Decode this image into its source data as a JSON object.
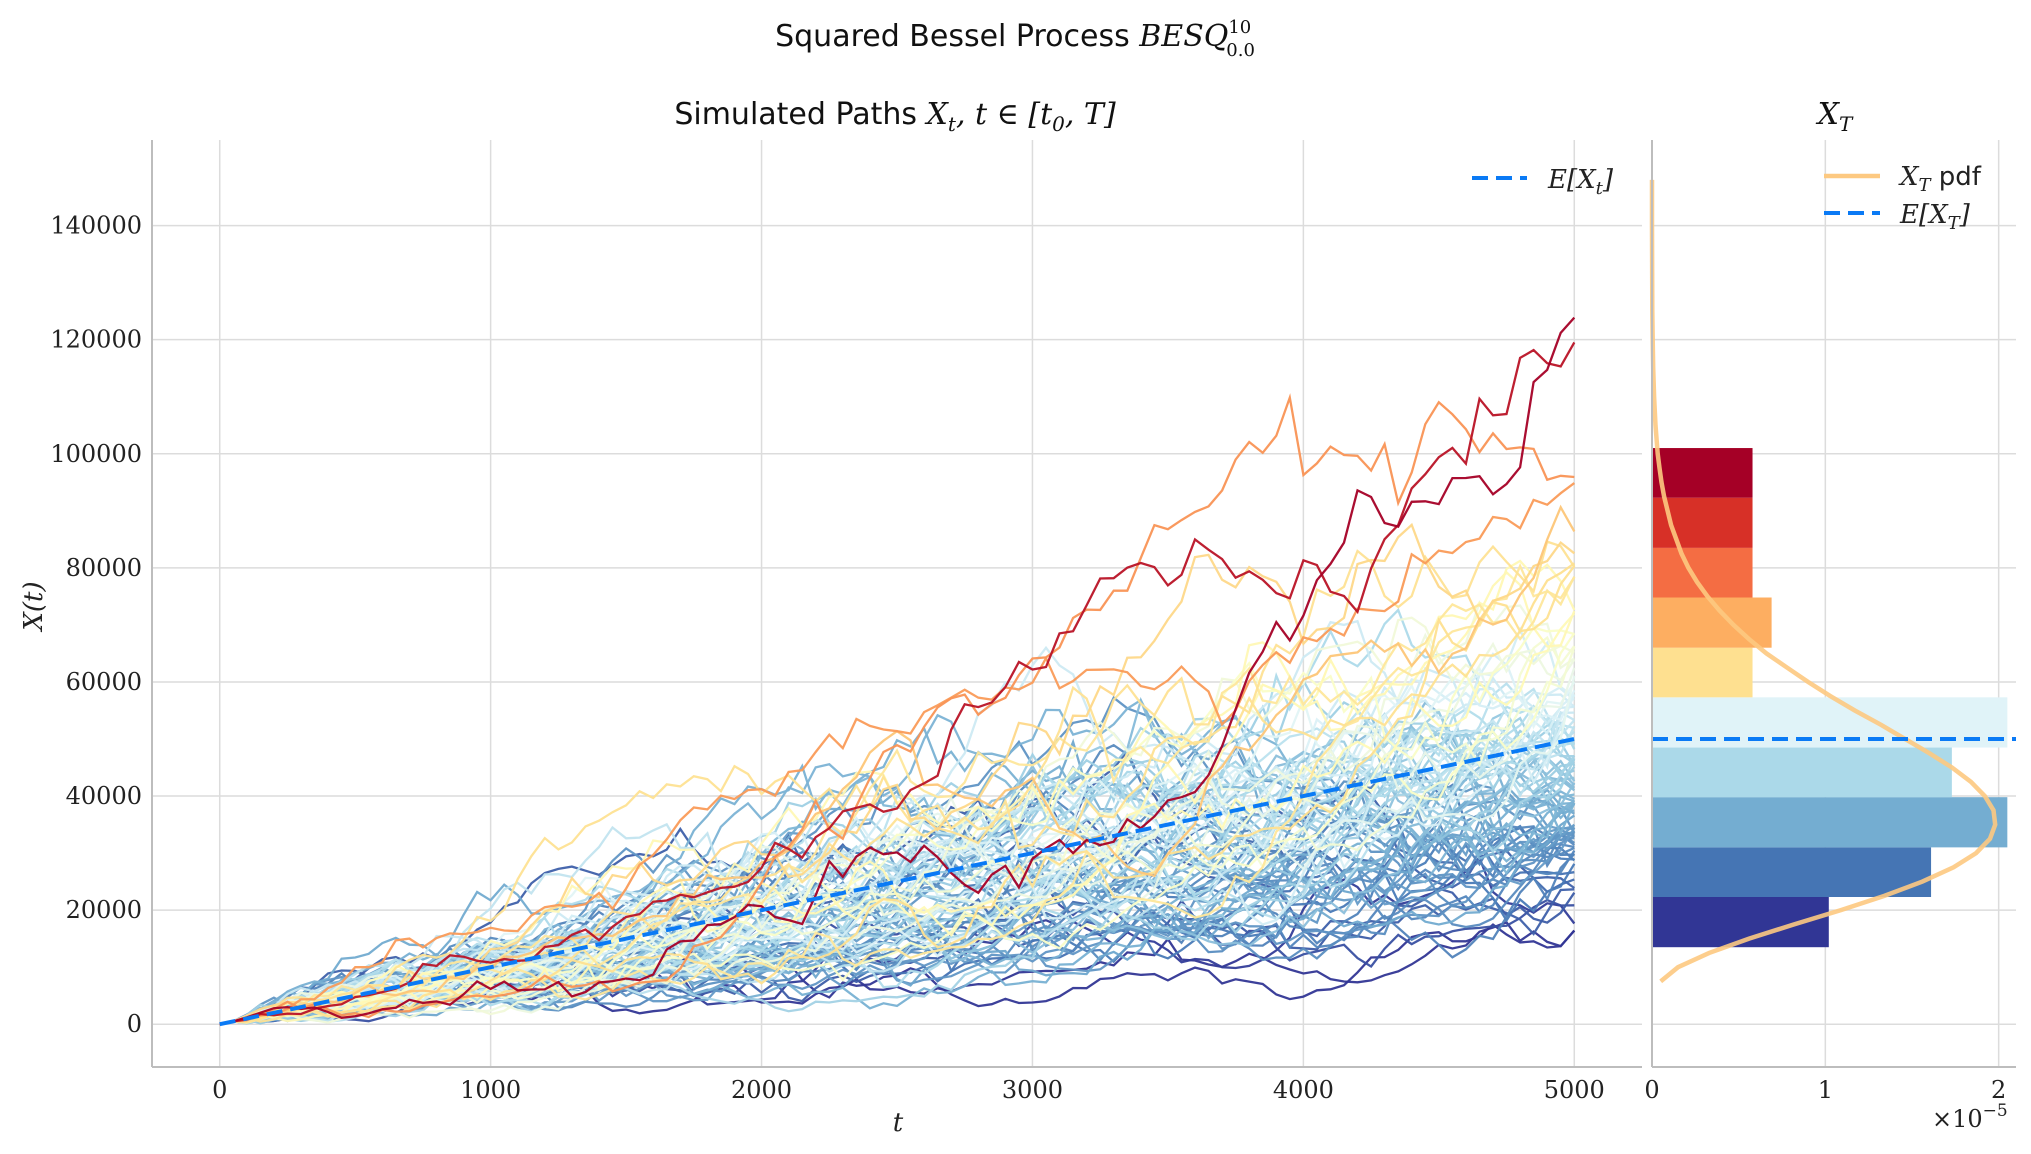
{
  "title": {
    "prefix": "Squared Bessel Process",
    "math": "BESQ",
    "sup": "10",
    "sub": "0.0"
  },
  "main_panel": {
    "title_prefix": "Simulated Paths",
    "title_math": "X",
    "title_sub": "t",
    "title_rest_1": ", t ∈ [t",
    "title_rest_sub": "0",
    "title_rest_2": ", T]",
    "legend": {
      "mean_label": "E[X",
      "mean_sub": "t",
      "mean_close": "]"
    }
  },
  "side_panel": {
    "title_math": "X",
    "title_sub": "T",
    "legend": {
      "pdf_label": "X",
      "pdf_sub": "T",
      "pdf_suffix": " pdf",
      "mean_label": "E[X",
      "mean_sub": "T",
      "mean_close": "]"
    },
    "offset_text_base": "×10",
    "offset_text_exp": "−5"
  },
  "colors": {
    "mean_line": "#0a7af5",
    "pdf_line": "#fdc981",
    "grid": "#dcdcdc",
    "spine": "#bdbdbd"
  },
  "chart_data": [
    {
      "type": "line",
      "title": "Simulated Paths X_t, t ∈ [t_0, T]",
      "xlabel": "t",
      "ylabel": "X(t)",
      "xlim": [
        -250,
        5250
      ],
      "ylim": [
        -7500,
        155000
      ],
      "xticks": [
        0,
        1000,
        2000,
        3000,
        4000,
        5000
      ],
      "xtick_labels": [
        "0",
        "1000",
        "2000",
        "3000",
        "4000",
        "5000"
      ],
      "yticks": [
        0,
        20000,
        40000,
        60000,
        80000,
        100000,
        120000,
        140000
      ],
      "ytick_labels": [
        "0",
        "20000",
        "40000",
        "60000",
        "80000",
        "100000",
        "120000",
        "140000"
      ],
      "grid": true,
      "legend_position": "top-right",
      "n_paths": 100,
      "n_steps": 100,
      "t_end": 5000,
      "colormap": "RdYlBu_r",
      "mean_series": {
        "name": "E[X_t]",
        "x": [
          0,
          5000
        ],
        "y": [
          0,
          50000
        ],
        "style": "dashed"
      }
    },
    {
      "type": "bar",
      "orientation": "horizontal",
      "title": "X_T",
      "xlim": [
        0,
        2.1e-05
      ],
      "xticks": [
        0,
        1e-05,
        2e-05
      ],
      "xtick_labels": [
        "0",
        "1",
        "2"
      ],
      "offset_text": "×10^−5",
      "ylim": [
        -7500,
        155000
      ],
      "bins": [
        {
          "y0": 13500,
          "y1": 22300,
          "density": 1.02e-05,
          "color": "#313695"
        },
        {
          "y0": 22300,
          "y1": 31000,
          "density": 1.61e-05,
          "color": "#4575b4"
        },
        {
          "y0": 31000,
          "y1": 39800,
          "density": 2.05e-05,
          "color": "#74add1"
        },
        {
          "y0": 39800,
          "y1": 48500,
          "density": 1.73e-05,
          "color": "#abd9e9"
        },
        {
          "y0": 48500,
          "y1": 57300,
          "density": 2.05e-05,
          "color": "#e0f3f8"
        },
        {
          "y0": 57300,
          "y1": 66000,
          "density": 5.8e-06,
          "color": "#fee090"
        },
        {
          "y0": 66000,
          "y1": 74800,
          "density": 6.9e-06,
          "color": "#fdae61"
        },
        {
          "y0": 74800,
          "y1": 83500,
          "density": 5.8e-06,
          "color": "#f46d43"
        },
        {
          "y0": 83500,
          "y1": 92300,
          "density": 5.8e-06,
          "color": "#d73027"
        },
        {
          "y0": 92300,
          "y1": 101000,
          "density": 5.8e-06,
          "color": "#a50026"
        }
      ],
      "pdf": {
        "name": "X_T pdf",
        "y": [
          7500,
          10000,
          12500,
          15000,
          17500,
          20000,
          22500,
          25000,
          27500,
          30000,
          32500,
          35000,
          37500,
          40000,
          42500,
          45000,
          47500,
          50000,
          52500,
          55000,
          57500,
          60000,
          62500,
          65000,
          67500,
          70000,
          72500,
          75000,
          77500,
          80000,
          82500,
          85000,
          87500,
          90000,
          92500,
          95000,
          97500,
          100000,
          105000,
          110000,
          115000,
          120000,
          125000,
          130000,
          135000,
          140000,
          145000,
          148000
        ],
        "density": [
          5e-07,
          1.5e-06,
          3.3e-06,
          5.6e-06,
          8.2e-06,
          1.09e-05,
          1.34e-05,
          1.56e-05,
          1.74e-05,
          1.87e-05,
          1.95e-05,
          1.98e-05,
          1.97e-05,
          1.92e-05,
          1.84e-05,
          1.73e-05,
          1.6e-05,
          1.46e-05,
          1.32e-05,
          1.17e-05,
          1.03e-05,
          9e-06,
          7.8e-06,
          6.6e-06,
          5.6e-06,
          4.7e-06,
          3.9e-06,
          3.2e-06,
          2.6e-06,
          2.1e-06,
          1.7e-06,
          1.4e-06,
          1.1e-06,
          9e-07,
          7e-07,
          5.5e-07,
          4.3e-07,
          3.3e-07,
          2e-07,
          1.2e-07,
          7e-08,
          4e-08,
          2e-08,
          1e-08,
          5e-09,
          2e-09,
          1e-09,
          0.0
        ]
      },
      "mean_series": {
        "name": "E[X_T]",
        "y": 50000,
        "style": "dashed"
      }
    }
  ]
}
